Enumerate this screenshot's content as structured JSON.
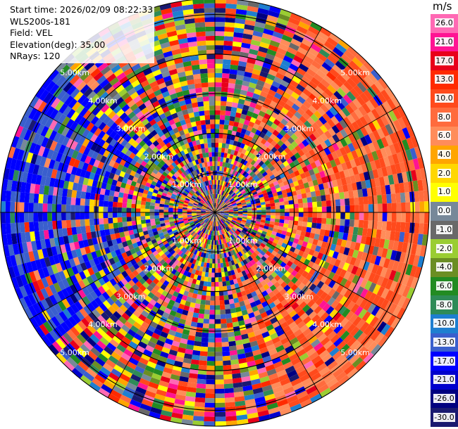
{
  "info": {
    "start_time": "Start time: 2026/02/09 08:22:33",
    "instrument": "WLS200s-181",
    "field": "Field: VEL",
    "elevation": "Elevation(deg): 35.00",
    "nrays": "NRays: 120"
  },
  "colorbar": {
    "unit": "m/s",
    "ticks": [
      "26.0",
      "21.0",
      "17.0",
      "13.0",
      "10.0",
      "8.0",
      "6.0",
      "4.0",
      "2.0",
      "1.0",
      "0.0",
      "-1.0",
      "-2.0",
      "-4.0",
      "-6.0",
      "-8.0",
      "-10.0",
      "-13.0",
      "-17.0",
      "-21.0",
      "-26.0",
      "-30.0"
    ],
    "colors": [
      "#ff69b4",
      "#ff1493",
      "#e8001a",
      "#ff2a00",
      "#ff4a1c",
      "#ff6b3d",
      "#ff8c5a",
      "#ffa500",
      "#ffd700",
      "#ffff00",
      "#778899",
      "#696969",
      "#9acd32",
      "#6b8e23",
      "#228b22",
      "#2e8b57",
      "#1e7fd0",
      "#3a5fcd",
      "#0000ff",
      "#0000cd",
      "#000080",
      "#191970"
    ]
  },
  "chart_data": {
    "type": "heatmap",
    "projection": "polar PPI",
    "field": "VEL",
    "unit": "m/s",
    "nrays": 120,
    "range_rings_km": [
      "1.00km",
      "2.00km",
      "3.00km",
      "4.00km",
      "5.00km"
    ],
    "ring_label_text": {
      "r1": "1.00km",
      "r2": "2.00km",
      "r3": "3.00km",
      "r4": "4.00km",
      "r5": "5.00km"
    },
    "max_range_km": 5.4,
    "colorscale_min": -30.0,
    "colorscale_max": 26.0,
    "coherent_regions": [
      {
        "azimuth_deg": [
          20,
          160
        ],
        "range_km": [
          1.5,
          5.4
        ],
        "velocity_ms": [
          6,
          13
        ],
        "color_note": "orange-red (receding)"
      },
      {
        "azimuth_deg": [
          230,
          310
        ],
        "range_km": [
          2.5,
          5.4
        ],
        "velocity_ms": [
          -17,
          -10
        ],
        "color_note": "blue (approaching)"
      }
    ]
  }
}
